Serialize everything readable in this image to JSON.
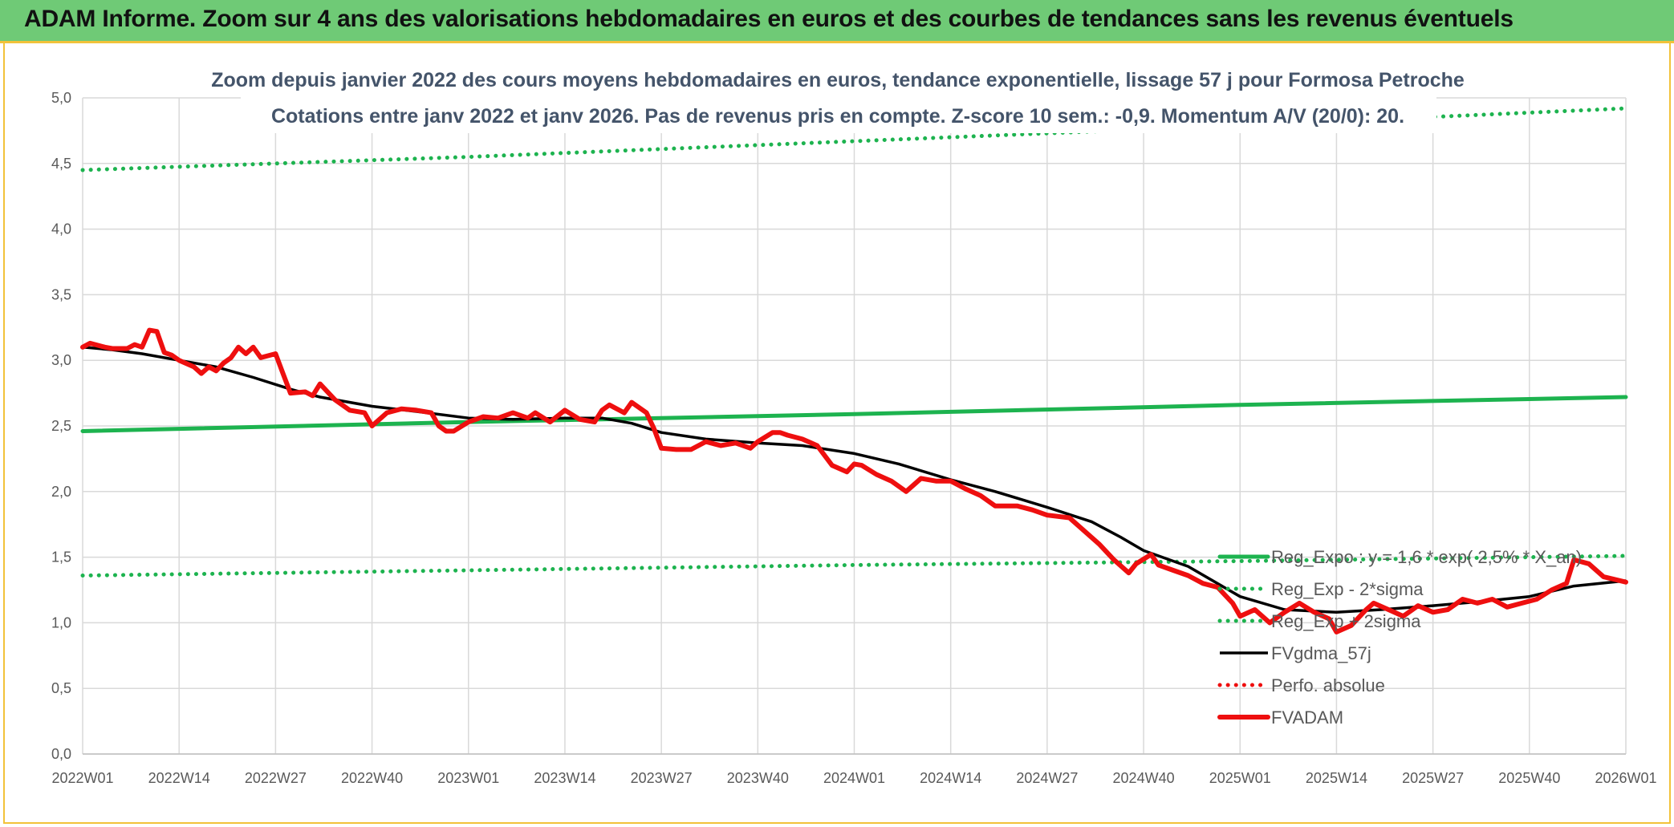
{
  "header": {
    "title": "ADAM Informe. Zoom sur 4 ans des valorisations hebdomadaires en euros et des courbes de tendances sans les revenus éventuels"
  },
  "colors": {
    "banner": "#6fca76",
    "border": "#f2c23a",
    "trend_green": "#1db34f",
    "fv_red": "#ee0f0f",
    "fv_black": "#000000",
    "grid": "#d9d9d9",
    "title_text": "#44546a"
  },
  "chart_data": {
    "type": "line",
    "title": "Zoom depuis janvier 2022 des cours moyens hebdomadaires en euros, tendance exponentielle, lissage 57 j pour Formosa Petroche",
    "subtitle": "Cotations entre janv 2022 et janv 2026. Pas de revenus pris en compte. Z-score 10 sem.: -0,9. Momentum A/V (20/0): 20.",
    "xlabel": "",
    "ylabel": "",
    "ylim": [
      0,
      5
    ],
    "y_ticks": [
      "0,0",
      "0,5",
      "1,0",
      "1,5",
      "2,0",
      "2,5",
      "3,0",
      "3,5",
      "4,0",
      "4,5",
      "5,0"
    ],
    "x_ticks": [
      "2022W01",
      "2022W14",
      "2022W27",
      "2022W40",
      "2023W01",
      "2023W14",
      "2023W27",
      "2023W40",
      "2024W01",
      "2024W14",
      "2024W27",
      "2024W40",
      "2025W01",
      "2025W14",
      "2025W27",
      "2025W40",
      "2026W01"
    ],
    "grid": true,
    "legend_position": "bottom-right",
    "series": [
      {
        "name": "Reg_Expo : y = 1,6 * exp( 2,5% * X_an)",
        "style": "solid-thick",
        "color": "#1db34f",
        "x": [
          "2022W01",
          "2023W01",
          "2024W01",
          "2025W01",
          "2026W01"
        ],
        "values": [
          2.46,
          2.53,
          2.59,
          2.66,
          2.72
        ]
      },
      {
        "name": "Reg_Exp - 2*sigma",
        "style": "dotted",
        "color": "#1db34f",
        "x": [
          "2022W01",
          "2023W01",
          "2024W01",
          "2025W01",
          "2026W01"
        ],
        "values": [
          1.36,
          1.4,
          1.44,
          1.47,
          1.51
        ]
      },
      {
        "name": "Reg_Exp + 2sigma",
        "style": "dotted",
        "color": "#1db34f",
        "x": [
          "2022W01",
          "2023W01",
          "2024W01",
          "2025W01",
          "2026W01"
        ],
        "values": [
          4.45,
          4.55,
          4.67,
          4.79,
          4.92
        ]
      },
      {
        "name": "FVgdma_57j",
        "style": "solid",
        "color": "#000000",
        "x": [
          "2022W01",
          "2022W05",
          "2022W09",
          "2022W14",
          "2022W19",
          "2022W24",
          "2022W29",
          "2022W33",
          "2022W40",
          "2022W46",
          "2023W01",
          "2023W07",
          "2023W14",
          "2023W19",
          "2023W23",
          "2023W27",
          "2023W33",
          "2023W40",
          "2023W46",
          "2024W01",
          "2024W07",
          "2024W14",
          "2024W20",
          "2024W27",
          "2024W33",
          "2024W37",
          "2024W40",
          "2024W46",
          "2025W01",
          "2025W07",
          "2025W14",
          "2025W20",
          "2025W27",
          "2025W33",
          "2025W40",
          "2025W46",
          "2026W01"
        ],
        "values": [
          3.1,
          3.08,
          3.05,
          3.0,
          2.95,
          2.87,
          2.78,
          2.72,
          2.65,
          2.61,
          2.56,
          2.55,
          2.56,
          2.56,
          2.52,
          2.45,
          2.4,
          2.37,
          2.35,
          2.29,
          2.21,
          2.09,
          2.0,
          1.88,
          1.77,
          1.65,
          1.55,
          1.43,
          1.2,
          1.1,
          1.08,
          1.1,
          1.13,
          1.16,
          1.2,
          1.28,
          1.32
        ]
      },
      {
        "name": "Perfo. absolue",
        "style": "dotted",
        "color": "#ee0f0f",
        "x": [],
        "values": []
      },
      {
        "name": "FVADAM",
        "style": "solid-thick",
        "color": "#ee0f0f",
        "x": [
          "2022W01",
          "2022W02",
          "2022W04",
          "2022W05",
          "2022W07",
          "2022W08",
          "2022W09",
          "2022W10",
          "2022W11",
          "2022W12",
          "2022W13",
          "2022W14",
          "2022W16",
          "2022W17",
          "2022W18",
          "2022W19",
          "2022W20",
          "2022W21",
          "2022W22",
          "2022W23",
          "2022W24",
          "2022W25",
          "2022W27",
          "2022W28",
          "2022W29",
          "2022W31",
          "2022W32",
          "2022W33",
          "2022W35",
          "2022W37",
          "2022W39",
          "2022W40",
          "2022W42",
          "2022W44",
          "2022W46",
          "2022W48",
          "2022W49",
          "2022W50",
          "2022W51",
          "2023W01",
          "2023W03",
          "2023W05",
          "2023W07",
          "2023W09",
          "2023W10",
          "2023W12",
          "2023W14",
          "2023W16",
          "2023W18",
          "2023W19",
          "2023W20",
          "2023W22",
          "2023W23",
          "2023W25",
          "2023W26",
          "2023W27",
          "2023W29",
          "2023W31",
          "2023W33",
          "2023W35",
          "2023W37",
          "2023W39",
          "2023W40",
          "2023W42",
          "2023W43",
          "2023W44",
          "2023W46",
          "2023W48",
          "2023W50",
          "2023W52",
          "2024W01",
          "2024W02",
          "2024W04",
          "2024W06",
          "2024W08",
          "2024W10",
          "2024W12",
          "2024W14",
          "2024W16",
          "2024W18",
          "2024W20",
          "2024W23",
          "2024W25",
          "2024W27",
          "2024W30",
          "2024W32",
          "2024W34",
          "2024W36",
          "2024W38",
          "2024W39",
          "2024W41",
          "2024W42",
          "2024W44",
          "2024W46",
          "2024W48",
          "2024W50",
          "2024W52",
          "2025W01",
          "2025W03",
          "2025W05",
          "2025W07",
          "2025W09",
          "2025W11",
          "2025W13",
          "2025W14",
          "2025W16",
          "2025W18",
          "2025W19",
          "2025W21",
          "2025W23",
          "2025W25",
          "2025W27",
          "2025W29",
          "2025W31",
          "2025W33",
          "2025W35",
          "2025W37",
          "2025W39",
          "2025W41",
          "2025W43",
          "2025W45",
          "2025W46",
          "2025W48",
          "2025W50",
          "2026W01"
        ],
        "values": [
          3.1,
          3.13,
          3.1,
          3.09,
          3.09,
          3.12,
          3.1,
          3.23,
          3.22,
          3.06,
          3.04,
          3.0,
          2.95,
          2.9,
          2.95,
          2.92,
          2.98,
          3.02,
          3.1,
          3.05,
          3.1,
          3.02,
          3.05,
          2.9,
          2.75,
          2.76,
          2.73,
          2.82,
          2.7,
          2.62,
          2.6,
          2.5,
          2.6,
          2.63,
          2.62,
          2.6,
          2.5,
          2.46,
          2.46,
          2.53,
          2.57,
          2.56,
          2.6,
          2.56,
          2.6,
          2.53,
          2.62,
          2.55,
          2.53,
          2.62,
          2.66,
          2.6,
          2.68,
          2.6,
          2.48,
          2.33,
          2.32,
          2.32,
          2.38,
          2.35,
          2.37,
          2.33,
          2.38,
          2.45,
          2.45,
          2.43,
          2.4,
          2.35,
          2.2,
          2.15,
          2.21,
          2.2,
          2.13,
          2.08,
          2.0,
          2.1,
          2.08,
          2.08,
          2.02,
          1.97,
          1.89,
          1.89,
          1.86,
          1.82,
          1.8,
          1.7,
          1.6,
          1.48,
          1.38,
          1.45,
          1.52,
          1.44,
          1.4,
          1.36,
          1.3,
          1.27,
          1.15,
          1.05,
          1.1,
          1.0,
          1.08,
          1.15,
          1.08,
          1.03,
          0.93,
          0.98,
          1.1,
          1.15,
          1.1,
          1.05,
          1.13,
          1.08,
          1.1,
          1.18,
          1.15,
          1.18,
          1.12,
          1.15,
          1.18,
          1.25,
          1.3,
          1.48,
          1.45,
          1.35,
          1.31
        ]
      }
    ]
  }
}
